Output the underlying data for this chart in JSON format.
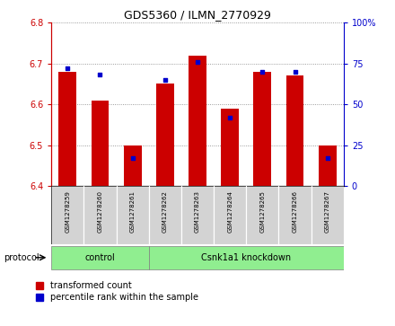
{
  "title": "GDS5360 / ILMN_2770929",
  "samples": [
    "GSM1278259",
    "GSM1278260",
    "GSM1278261",
    "GSM1278262",
    "GSM1278263",
    "GSM1278264",
    "GSM1278265",
    "GSM1278266",
    "GSM1278267"
  ],
  "transformed_counts": [
    6.68,
    6.61,
    6.5,
    6.65,
    6.72,
    6.59,
    6.68,
    6.67,
    6.5
  ],
  "percentile_ranks": [
    72,
    68,
    17,
    65,
    76,
    42,
    70,
    70,
    17
  ],
  "ylim_left": [
    6.4,
    6.8
  ],
  "ylim_right": [
    0,
    100
  ],
  "yticks_left": [
    6.4,
    6.5,
    6.6,
    6.7,
    6.8
  ],
  "yticks_right": [
    0,
    25,
    50,
    75,
    100
  ],
  "bar_color": "#cc0000",
  "dot_color": "#0000cc",
  "nc": 3,
  "nk": 6,
  "control_label": "control",
  "knockdown_label": "Csnk1a1 knockdown",
  "protocol_label": "protocol",
  "group_bg_color": "#90ee90",
  "sample_bg_color": "#d3d3d3",
  "legend_red_label": "transformed count",
  "legend_blue_label": "percentile rank within the sample",
  "left_axis_color": "#cc0000",
  "right_axis_color": "#0000cc",
  "title_fontsize": 9,
  "tick_fontsize": 7,
  "sample_fontsize": 5,
  "label_fontsize": 7
}
